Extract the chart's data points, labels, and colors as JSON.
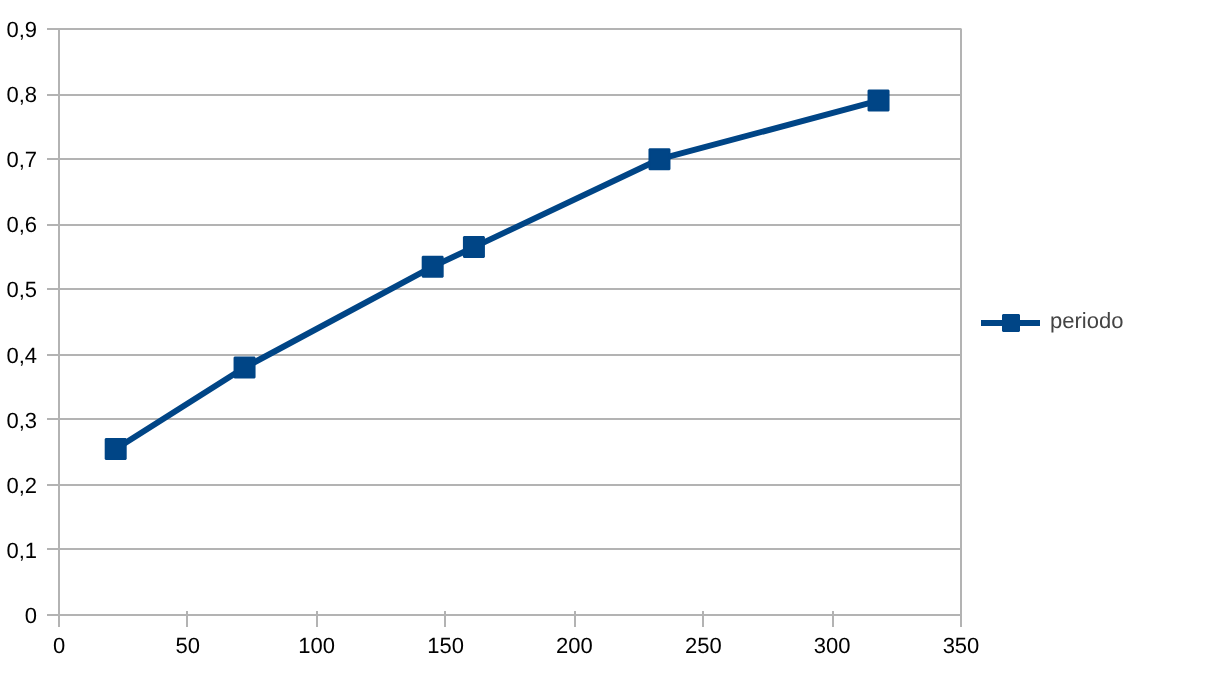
{
  "chart_data": {
    "type": "line",
    "x": [
      22,
      72,
      145,
      161,
      233,
      318
    ],
    "series": [
      {
        "name": "periodo",
        "color": "#004586",
        "values": [
          0.255,
          0.38,
          0.535,
          0.565,
          0.7,
          0.79
        ]
      }
    ],
    "xlim": [
      0,
      350
    ],
    "xticks": [
      0,
      50,
      100,
      150,
      200,
      250,
      300,
      350
    ],
    "ylim": [
      0,
      0.9
    ],
    "yticks": [
      0,
      {
        "value": 0.1,
        "label": "0,1"
      },
      {
        "value": 0.2,
        "label": "0,2"
      },
      {
        "value": 0.3,
        "label": "0,3"
      },
      {
        "value": 0.4,
        "label": "0,4"
      },
      {
        "value": 0.5,
        "label": "0,5"
      },
      {
        "value": 0.6,
        "label": "0,6"
      },
      {
        "value": 0.7,
        "label": "0,7"
      },
      {
        "value": 0.8,
        "label": "0,8"
      },
      {
        "value": 0.9,
        "label": "0,9"
      }
    ],
    "grid": "y",
    "legend": "right",
    "marker": "square",
    "line_style": "solid"
  }
}
